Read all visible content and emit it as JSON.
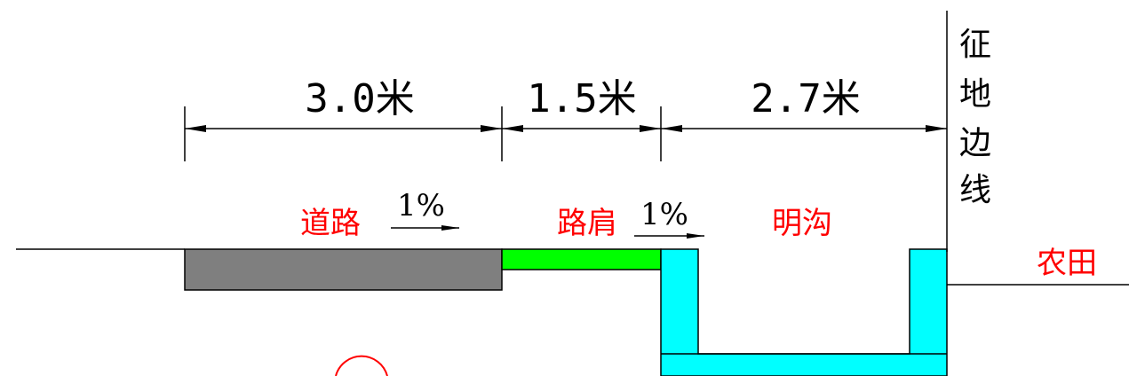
{
  "dimensions": {
    "road_width": "3.0米",
    "shoulder_width": "1.5米",
    "ditch_width": "2.7米"
  },
  "labels": {
    "road": "道路",
    "shoulder": "路肩",
    "ditch": "明沟",
    "farmland": "农田",
    "boundary": [
      "征",
      "地",
      "边",
      "线"
    ]
  },
  "slopes": {
    "road": "1%",
    "shoulder": "1%"
  },
  "colors": {
    "road": "#7f7f7f",
    "shoulder": "#00ff00",
    "ditch": "#00ffff",
    "label": "#ff0000",
    "line": "#000000"
  }
}
